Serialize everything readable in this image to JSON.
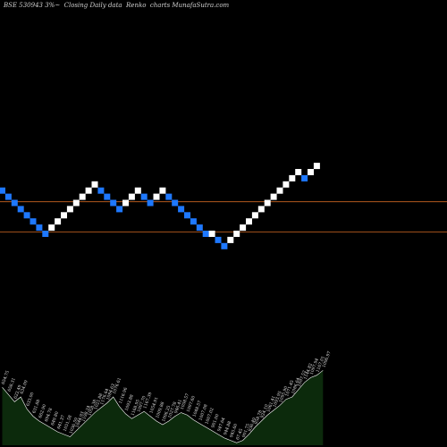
{
  "header": {
    "title": "BSE 530943 3%~  Closing Daily data  Renko  charts MunafaSutra.com"
  },
  "colors": {
    "background": "#000000",
    "up_brick": "#ffffff",
    "down_brick": "#1e78ff",
    "level_line": "#b35a1e",
    "volume_fill": "#0c2a0c",
    "volume_line": "#ffffff",
    "label": "#e6e6e6"
  },
  "chart_data": {
    "type": "renko",
    "bricks": [
      {
        "dir": "down",
        "level": 7
      },
      {
        "dir": "down",
        "level": 6
      },
      {
        "dir": "down",
        "level": 5
      },
      {
        "dir": "down",
        "level": 4
      },
      {
        "dir": "down",
        "level": 3
      },
      {
        "dir": "down",
        "level": 2
      },
      {
        "dir": "down",
        "level": 1
      },
      {
        "dir": "down",
        "level": 0
      },
      {
        "dir": "up",
        "level": 1
      },
      {
        "dir": "up",
        "level": 2
      },
      {
        "dir": "up",
        "level": 3
      },
      {
        "dir": "up",
        "level": 4
      },
      {
        "dir": "up",
        "level": 5
      },
      {
        "dir": "up",
        "level": 6
      },
      {
        "dir": "up",
        "level": 7
      },
      {
        "dir": "up",
        "level": 8
      },
      {
        "dir": "down",
        "level": 7
      },
      {
        "dir": "down",
        "level": 6
      },
      {
        "dir": "down",
        "level": 5
      },
      {
        "dir": "down",
        "level": 4
      },
      {
        "dir": "up",
        "level": 5
      },
      {
        "dir": "up",
        "level": 6
      },
      {
        "dir": "up",
        "level": 7
      },
      {
        "dir": "down",
        "level": 6
      },
      {
        "dir": "down",
        "level": 5
      },
      {
        "dir": "up",
        "level": 6
      },
      {
        "dir": "up",
        "level": 7
      },
      {
        "dir": "down",
        "level": 6
      },
      {
        "dir": "down",
        "level": 5
      },
      {
        "dir": "down",
        "level": 4
      },
      {
        "dir": "down",
        "level": 3
      },
      {
        "dir": "down",
        "level": 2
      },
      {
        "dir": "down",
        "level": 1
      },
      {
        "dir": "down",
        "level": 0
      },
      {
        "dir": "up",
        "level": 0
      },
      {
        "dir": "down",
        "level": -1
      },
      {
        "dir": "down",
        "level": -2
      },
      {
        "dir": "up",
        "level": -1
      },
      {
        "dir": "up",
        "level": 0
      },
      {
        "dir": "up",
        "level": 1
      },
      {
        "dir": "up",
        "level": 2
      },
      {
        "dir": "up",
        "level": 3
      },
      {
        "dir": "up",
        "level": 4
      },
      {
        "dir": "up",
        "level": 5
      },
      {
        "dir": "up",
        "level": 6
      },
      {
        "dir": "up",
        "level": 7
      },
      {
        "dir": "up",
        "level": 8
      },
      {
        "dir": "up",
        "level": 9
      },
      {
        "dir": "up",
        "level": 10
      },
      {
        "dir": "down",
        "level": 9
      },
      {
        "dir": "up",
        "level": 10
      },
      {
        "dir": "up",
        "level": 11
      }
    ],
    "level_lines": [
      5.2,
      0.3
    ],
    "volume": {
      "values": [
        48,
        42,
        36,
        40,
        30,
        24,
        20,
        17,
        14,
        11,
        9,
        7,
        12,
        17,
        22,
        27,
        31,
        35,
        40,
        32,
        26,
        22,
        25,
        28,
        24,
        20,
        17,
        20,
        24,
        27,
        25,
        21,
        18,
        15,
        12,
        9,
        6,
        4,
        2,
        4,
        9,
        15,
        20,
        25,
        29,
        33,
        38,
        40,
        46,
        52,
        56,
        58,
        62
      ],
      "labels": [
        "654.75",
        "658.31",
        "622.49",
        "634.09",
        "633.00",
        "631.88",
        "662.90",
        "694.78",
        "649.80",
        "641.37",
        "1051.58",
        "1036.59",
        "1044.93",
        "1198.24",
        "1058.38",
        "1021.88",
        "1176.64",
        "1084.63",
        "1076.61",
        "1116.96",
        "1093.88",
        "1168.95",
        "1097.70",
        "1167.39",
        "1054.91",
        "1009.88",
        "1096.25",
        "1027.78",
        "946.41",
        "1058.57",
        "1097.60",
        "1048.57",
        "1007.08",
        "1007.02",
        "901.00",
        "947.64",
        "944.88",
        "945.60",
        "67.45",
        "901.75",
        "936.49",
        "958.78",
        "924.10",
        "1061.41",
        "1093.95",
        "1095.90",
        "1071.45",
        "1086.64",
        "1097.52",
        "1144.82",
        "1097.94",
        "1167.01",
        "1096.97"
      ]
    }
  }
}
